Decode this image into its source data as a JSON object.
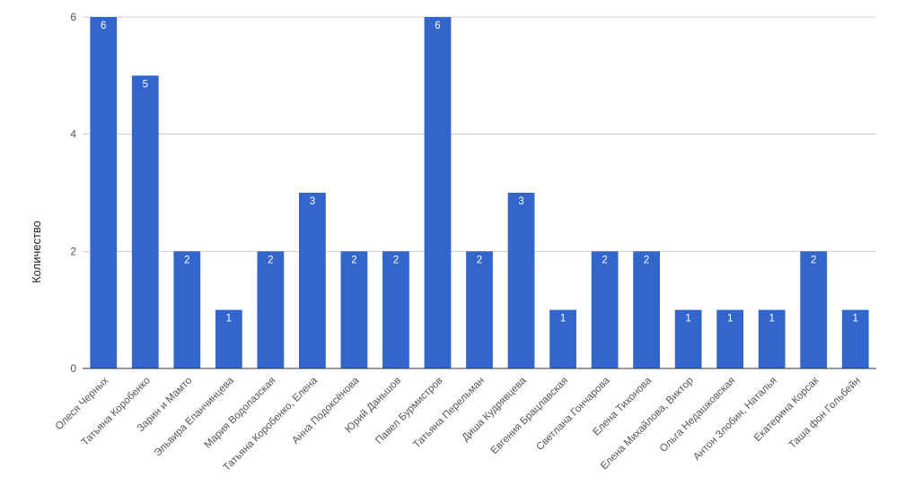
{
  "colors": {
    "bar": "#3366cc",
    "grid": "#cccccc",
    "axis": "#333333",
    "label": "#555555"
  },
  "chart_data": {
    "type": "bar",
    "title": "",
    "xlabel": "",
    "ylabel": "Количество",
    "ylim": [
      0,
      6
    ],
    "yticks": [
      0,
      2,
      4,
      6
    ],
    "grid": true,
    "legend": "none",
    "categories": [
      "Олеся Черных",
      "Татьяна Коробенко",
      "Зарин и Мамто",
      "Эльвира Епанчинцева",
      "Мария Водолазская",
      "Татьяна Коробенко, Елена",
      "Анна Подоксёнова",
      "Юрий Даньшов",
      "Павел Бурмистров",
      "Татьяна Перельман",
      "Диша Кудрявцева",
      "Евгения Брацлавская",
      "Светлана Гончарова",
      "Елена Тихонова",
      "Елена Михайлова, Виктор",
      "Ольга Недашковская",
      "Антон Злобин, Наталья",
      "Екатерина Корсак",
      "Таша фон Гольбейн"
    ],
    "values": [
      6,
      5,
      2,
      1,
      2,
      3,
      2,
      2,
      6,
      2,
      3,
      1,
      2,
      2,
      1,
      1,
      1,
      2,
      1
    ]
  }
}
